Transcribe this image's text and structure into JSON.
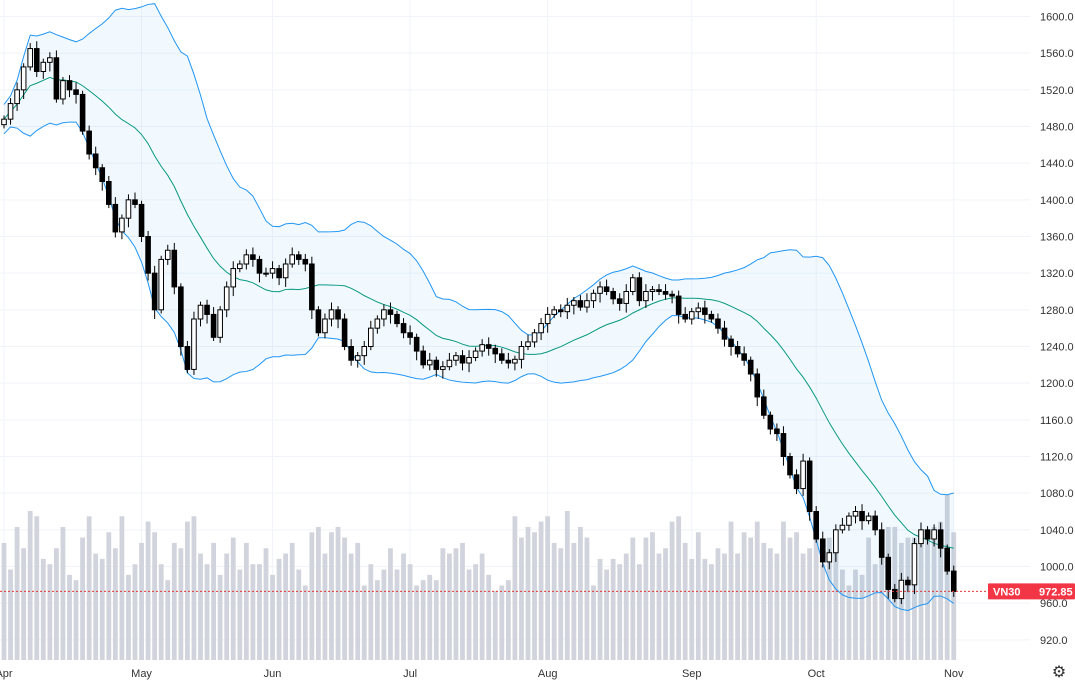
{
  "chart_data": {
    "type": "candlestick",
    "symbol": "VN30",
    "last_price_label": "972.85",
    "last_price": 972.85,
    "ylim": [
      898,
      1618
    ],
    "yticks": [
      920,
      960,
      1000,
      1040,
      1080,
      1120,
      1160,
      1200,
      1240,
      1280,
      1320,
      1360,
      1400,
      1440,
      1480,
      1520,
      1560,
      1600
    ],
    "ytick_labels": [
      "920.0",
      "960.0",
      "1000.0",
      "1040.0",
      "1080.0",
      "1120.0",
      "1160.0",
      "1200.0",
      "1240.0",
      "1280.0",
      "1320.0",
      "1360.0",
      "1400.0",
      "1440.0",
      "1480.0",
      "1520.0",
      "1560.0",
      "1600.0"
    ],
    "months": [
      {
        "label": "Apr",
        "index": 0
      },
      {
        "label": "May",
        "index": 21
      },
      {
        "label": "Jun",
        "index": 41
      },
      {
        "label": "Jul",
        "index": 62
      },
      {
        "label": "Aug",
        "index": 83
      },
      {
        "label": "Sep",
        "index": 105
      },
      {
        "label": "Oct",
        "index": 124
      },
      {
        "label": "Nov",
        "index": 145
      }
    ],
    "closes": [
      1488,
      1505,
      1520,
      1545,
      1565,
      1540,
      1550,
      1555,
      1510,
      1530,
      1520,
      1515,
      1475,
      1450,
      1435,
      1420,
      1395,
      1365,
      1380,
      1400,
      1395,
      1360,
      1320,
      1280,
      1335,
      1345,
      1305,
      1240,
      1215,
      1270,
      1285,
      1275,
      1250,
      1280,
      1305,
      1325,
      1330,
      1340,
      1335,
      1320,
      1320,
      1325,
      1315,
      1330,
      1340,
      1335,
      1330,
      1280,
      1255,
      1270,
      1280,
      1270,
      1240,
      1225,
      1230,
      1240,
      1260,
      1270,
      1280,
      1275,
      1265,
      1255,
      1250,
      1235,
      1220,
      1225,
      1215,
      1218,
      1225,
      1230,
      1222,
      1228,
      1235,
      1242,
      1238,
      1232,
      1225,
      1222,
      1226,
      1240,
      1245,
      1255,
      1265,
      1275,
      1280,
      1278,
      1285,
      1290,
      1283,
      1290,
      1298,
      1305,
      1300,
      1292,
      1287,
      1300,
      1315,
      1290,
      1300,
      1302,
      1300,
      1297,
      1295,
      1275,
      1270,
      1278,
      1282,
      1275,
      1270,
      1260,
      1248,
      1240,
      1232,
      1225,
      1210,
      1185,
      1165,
      1150,
      1145,
      1120,
      1100,
      1085,
      1115,
      1060,
      1030,
      1005,
      1015,
      1040,
      1045,
      1055,
      1060,
      1050,
      1055,
      1040,
      1010,
      975,
      965,
      985,
      980,
      1025,
      1040,
      1030,
      1040,
      1020,
      995,
      972.85
    ],
    "volumes": [
      22,
      17,
      25,
      21,
      28,
      27,
      19,
      18,
      21,
      25,
      16,
      15,
      23,
      27,
      20,
      19,
      24,
      21,
      27,
      16,
      18,
      22,
      26,
      24,
      18,
      15,
      22,
      21,
      26,
      27,
      20,
      18,
      22,
      16,
      20,
      23,
      17,
      22,
      18,
      18,
      21,
      16,
      19,
      20,
      22,
      17,
      14,
      24,
      25,
      20,
      24,
      25,
      23,
      20,
      22,
      14,
      18,
      15,
      17,
      21,
      17,
      20,
      18,
      14,
      15,
      16,
      15,
      21,
      20,
      21,
      22,
      17,
      18,
      20,
      16,
      13,
      14,
      15,
      27,
      23,
      25,
      24,
      26,
      27,
      22,
      21,
      28,
      22,
      25,
      23,
      14,
      19,
      17,
      19,
      18,
      20,
      23,
      18,
      23,
      24,
      20,
      21,
      26,
      27,
      22,
      19,
      24,
      19,
      18,
      21,
      20,
      26,
      20,
      24,
      23,
      26,
      22,
      21,
      20,
      26,
      23,
      24,
      20,
      21,
      23,
      18,
      23,
      21,
      17,
      14,
      17,
      16,
      23,
      18,
      24,
      25,
      25,
      22,
      23,
      23,
      23,
      23,
      25,
      26,
      31,
      24
    ]
  },
  "price_tag": {
    "symbol": "VN30",
    "value": "972.85"
  },
  "settings_icon": "gear-icon"
}
